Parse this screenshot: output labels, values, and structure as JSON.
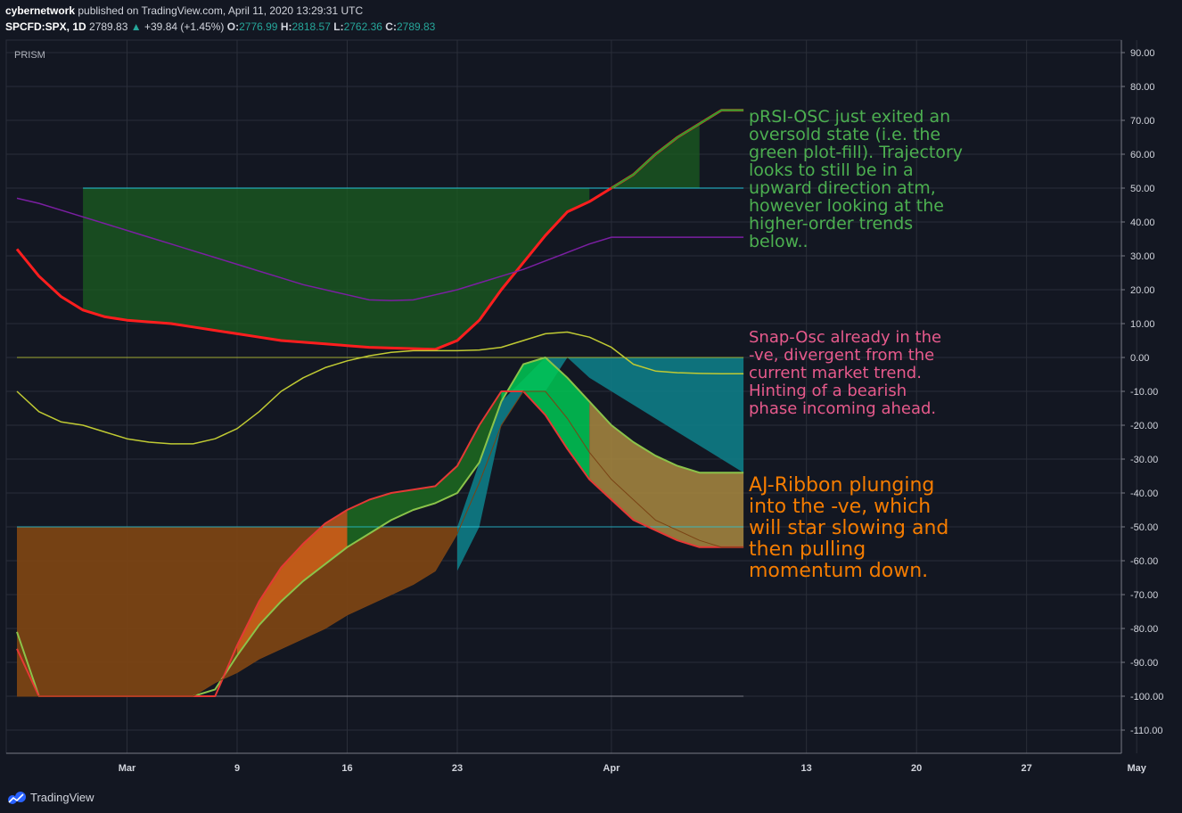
{
  "header": {
    "user": "cybernetwork",
    "published_text": " published on TradingView.com, April 11, 2020 13:29:31 UTC",
    "symbol": "SPCFD:SPX, 1D",
    "price": "2789.83",
    "change_arrow": "▲",
    "change": "+39.84 (+1.45%)",
    "open_label": "O:",
    "open": "2776.99",
    "high_label": "H:",
    "high": "2818.57",
    "low_label": "L:",
    "low": "2762.36",
    "close_label": "C:",
    "close": "2789.83"
  },
  "indicator_label": "PRISM",
  "footer": {
    "brand": "TradingView"
  },
  "annotations": {
    "prsi": "pRSI-OSC just exited an\noversold state (i.e. the\ngreen plot-fill). Trajectory\nlooks to still be in a\nupward direction atm,\nhowever looking at the\nhigher-order trends\nbelow..",
    "snap": "Snap-Osc already in the\n-ve, divergent from the\ncurrent market trend.\nHinting of a bearish\nphase incoming ahead.",
    "aj": "AJ-Ribbon plunging\ninto the -ve, which\nwill star slowing and\nthen pulling\nmomentum down."
  },
  "colors": {
    "background": "#131722",
    "grid": "#2a2e39",
    "prsi_line": "#ff1e1e",
    "prsi_signal": "#2ea02e",
    "purple": "#7b1fa2",
    "snap_line": "#b8862c",
    "pink": "#c77dba",
    "cyan_fill": "#0e7c86",
    "orange_fill": "#7a4314",
    "green_fill": "#1b5e20",
    "bright_green": "#00c853"
  },
  "chart_data": {
    "type": "line",
    "title": "",
    "ylim": [
      -115,
      95
    ],
    "y_ticks": [
      "90.00",
      "80.00",
      "70.00",
      "60.00",
      "50.00",
      "40.00",
      "30.00",
      "20.00",
      "10.00",
      "0.00",
      "-10.00",
      "-20.00",
      "-30.00",
      "-40.00",
      "-50.00",
      "-60.00",
      "-70.00",
      "-80.00",
      "-90.00",
      "-100.00",
      "-110.00"
    ],
    "y_tick_values": [
      90,
      80,
      70,
      60,
      50,
      40,
      30,
      20,
      10,
      0,
      -10,
      -20,
      -30,
      -40,
      -50,
      -60,
      -70,
      -80,
      -90,
      -100,
      -110
    ],
    "x_ticks": [
      "Mar",
      "9",
      "16",
      "23",
      "Apr",
      "13",
      "20",
      "27",
      "May"
    ],
    "x_tick_dates": [
      "2020-03-02",
      "2020-03-09",
      "2020-03-16",
      "2020-03-23",
      "2020-04-01",
      "2020-04-13",
      "2020-04-20",
      "2020-04-27",
      "2020-05-04"
    ],
    "x": [
      "2020-02-24",
      "2020-02-25",
      "2020-02-26",
      "2020-02-27",
      "2020-02-28",
      "2020-03-02",
      "2020-03-03",
      "2020-03-04",
      "2020-03-05",
      "2020-03-06",
      "2020-03-09",
      "2020-03-10",
      "2020-03-11",
      "2020-03-12",
      "2020-03-13",
      "2020-03-16",
      "2020-03-17",
      "2020-03-18",
      "2020-03-19",
      "2020-03-20",
      "2020-03-23",
      "2020-03-24",
      "2020-03-25",
      "2020-03-26",
      "2020-03-27",
      "2020-03-30",
      "2020-03-31",
      "2020-04-01",
      "2020-04-02",
      "2020-04-03",
      "2020-04-06",
      "2020-04-07",
      "2020-04-08",
      "2020-04-09"
    ],
    "levels": [
      50,
      0,
      -50,
      -100
    ],
    "series": [
      {
        "values": [
          32,
          24,
          18,
          14,
          12,
          11,
          10.5,
          10,
          9,
          8,
          7,
          6,
          5,
          4.5,
          4,
          3.5,
          3,
          2.8,
          2.6,
          2.4,
          5,
          11,
          20,
          28,
          36,
          43,
          46,
          50,
          54,
          60,
          65,
          69,
          73,
          73
        ]
      },
      {
        "values": [
          47,
          45.5,
          43.5,
          41.5,
          39.5,
          37.5,
          35.5,
          33.5,
          31.5,
          29.5,
          27.5,
          25.5,
          23.5,
          21.5,
          20,
          18.5,
          17,
          16.8,
          17,
          18.5,
          20,
          22,
          24,
          26,
          28.5,
          31,
          33.5,
          35.5,
          35.5,
          35.5,
          35.5,
          35.5,
          35.5,
          35.5
        ]
      },
      {
        "values": [
          -10,
          -16,
          -19,
          -20,
          -22,
          -24,
          -25,
          -25.5,
          -25.5,
          -24,
          -21,
          -16,
          -10,
          -6,
          -3,
          -1,
          0.5,
          1.5,
          2,
          2,
          2,
          2.2,
          3,
          5,
          7,
          7.5,
          6,
          3,
          -2,
          -4,
          -4.5,
          -4.7,
          -4.8,
          -4.8
        ]
      },
      {
        "values": [
          -81,
          -100,
          -100,
          -100,
          -100,
          -100,
          -100,
          -100,
          -100,
          -98,
          -88,
          -79,
          -72,
          -66,
          -61,
          -56,
          -52,
          -48,
          -45,
          -43,
          -40,
          -31,
          -13,
          -2,
          0,
          -6,
          -13,
          -20,
          -25,
          -29,
          -32,
          -34,
          -34,
          -34
        ]
      },
      {
        "values": [
          -86,
          -100,
          -100,
          -100,
          -100,
          -100,
          -100,
          -100,
          -100,
          -100,
          -85,
          -72,
          -62,
          -55,
          -49,
          -45,
          -42,
          -40,
          -39,
          -38,
          -32,
          -20,
          -10,
          -10,
          -17,
          -27,
          -36,
          -42,
          -48,
          -51,
          -54,
          -56,
          -56,
          -56
        ]
      },
      {
        "values": [
          -100,
          -100,
          -100,
          -100,
          -100,
          -100,
          -100,
          -100,
          -100,
          -96,
          -93,
          -89,
          -86,
          -83,
          -80,
          -76,
          -73,
          -70,
          -67,
          -63,
          -52,
          -37,
          -20,
          -10,
          -10,
          -18,
          -28,
          -36,
          -42,
          -48,
          -51,
          -54,
          -56,
          -56
        ]
      }
    ]
  }
}
